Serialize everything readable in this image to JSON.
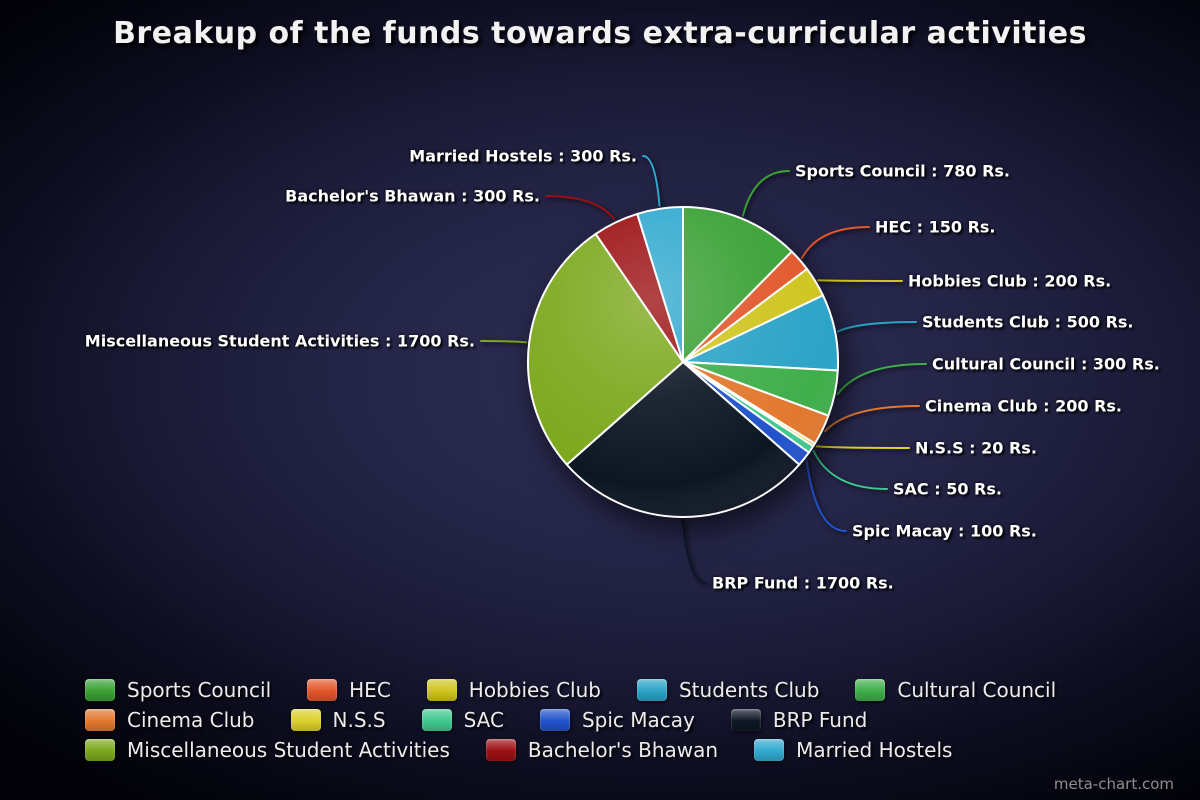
{
  "title": "Breakup of the funds towards extra-curricular activities",
  "watermark": "meta-chart.com",
  "chart_data": {
    "type": "pie",
    "title": "Breakup of the funds towards extra-curricular activities",
    "unit": "Rs.",
    "total": 6300,
    "start_angle": "top",
    "direction": "clockwise",
    "legend_position": "bottom",
    "series": [
      {
        "name": "Sports Council",
        "value": 780,
        "color": "#3aa135",
        "label_text": "Sports Council : 780 Rs."
      },
      {
        "name": "HEC",
        "value": 150,
        "color": "#e2572b",
        "label_text": "HEC : 150 Rs."
      },
      {
        "name": "Hobbies Club",
        "value": 200,
        "color": "#cfc51f",
        "label_text": "Hobbies Club : 200 Rs."
      },
      {
        "name": "Students Club",
        "value": 500,
        "color": "#2ba3c7",
        "label_text": "Students Club : 500 Rs."
      },
      {
        "name": "Cultural Council",
        "value": 300,
        "color": "#3fae4a",
        "label_text": "Cultural Council : 300 Rs."
      },
      {
        "name": "Cinema Club",
        "value": 200,
        "color": "#e2782e",
        "label_text": "Cinema Club : 200 Rs."
      },
      {
        "name": "N.S.S",
        "value": 20,
        "color": "#ddd02b",
        "label_text": "N.S.S : 20 Rs."
      },
      {
        "name": "SAC",
        "value": 50,
        "color": "#3fc98f",
        "label_text": "SAC : 50 Rs."
      },
      {
        "name": "Spic Macay",
        "value": 100,
        "color": "#2253cc",
        "label_text": "Spic Macay : 100 Rs."
      },
      {
        "name": "BRP Fund",
        "value": 1700,
        "color": "#0d1724",
        "label_text": "BRP Fund : 1700 Rs."
      },
      {
        "name": "Miscellaneous Student Activities",
        "value": 1700,
        "color": "#7ca81d",
        "label_text": "Miscellaneous Student Activities : 1700 Rs."
      },
      {
        "name": "Bachelor's Bhawan",
        "value": 300,
        "color": "#9c1013",
        "label_text": "Bachelor's Bhawan : 300 Rs."
      },
      {
        "name": "Married Hostels",
        "value": 300,
        "color": "#31a9cf",
        "label_text": "Married Hostels : 300 Rs."
      }
    ]
  }
}
